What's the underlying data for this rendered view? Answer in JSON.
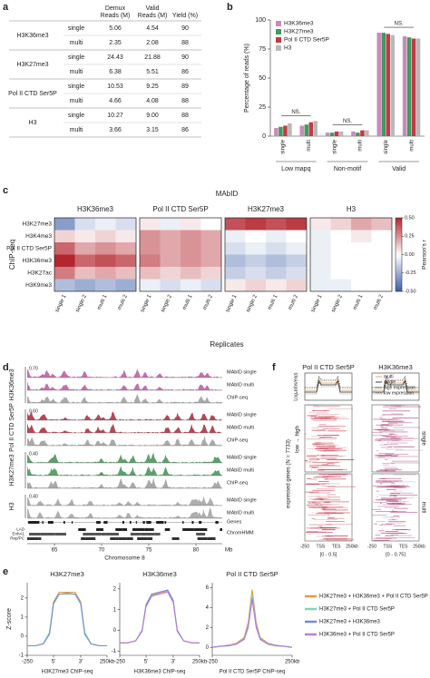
{
  "panel_labels": [
    "a",
    "b",
    "c",
    "d",
    "e",
    "f"
  ],
  "table": {
    "header": [
      [
        "Demux",
        "Reads (M)"
      ],
      [
        "Valid",
        "Reads (M)"
      ],
      [
        "Yield (%)"
      ]
    ],
    "groups": [
      {
        "name": "H3K36me3",
        "rows": [
          [
            "single",
            "5.06",
            "4.54",
            "90"
          ],
          [
            "multi",
            "2.35",
            "2.08",
            "88"
          ]
        ]
      },
      {
        "name": "H3K27me3",
        "rows": [
          [
            "single",
            "24.43",
            "21.88",
            "90"
          ],
          [
            "multi",
            "6.38",
            "5.51",
            "86"
          ]
        ]
      },
      {
        "name": "Pol II CTD Ser5P",
        "rows": [
          [
            "single",
            "10.53",
            "9.25",
            "89"
          ],
          [
            "multi",
            "4.66",
            "4.08",
            "88"
          ]
        ]
      },
      {
        "name": "H3",
        "rows": [
          [
            "single",
            "10.27",
            "9.00",
            "88"
          ],
          [
            "multi",
            "3.66",
            "3.15",
            "86"
          ]
        ]
      }
    ]
  },
  "chart_data": [
    {
      "type": "bar",
      "ylabel": "Percentage of reads (%)",
      "categories": [
        "single",
        "multi",
        "single",
        "multi",
        "single",
        "multi"
      ],
      "groups": [
        "Low mapq",
        "Non-motif",
        "Valid"
      ],
      "annotations": [
        "NS.",
        "NS.",
        "NS."
      ],
      "ylim": [
        0,
        100
      ],
      "yticks": [
        0,
        25,
        50,
        75,
        100
      ],
      "series": [
        {
          "name": "H3K36me3",
          "color": "#c98bb9",
          "values": [
            7,
            9,
            3,
            4,
            89,
            86
          ]
        },
        {
          "name": "H3K27me3",
          "color": "#3f9a62",
          "values": [
            8,
            10,
            3,
            3,
            89,
            85
          ]
        },
        {
          "name": "Pol II CTD Ser5P",
          "color": "#c23a45",
          "values": [
            9,
            12,
            4,
            5,
            88,
            84
          ]
        },
        {
          "name": "H3",
          "color": "#b9b9b9",
          "values": [
            11,
            13,
            4,
            5,
            87,
            84
          ]
        }
      ]
    },
    {
      "type": "heatmap",
      "title": "MAbID",
      "ylabel": "ChIP-seq",
      "xlabel": "Replicates",
      "colorbar_label": "Pearson's r",
      "rows": [
        "H3K27me3",
        "H3K4me3",
        "Pol II CTD Ser5P",
        "H3K36me3",
        "H3K27ac",
        "H3K9me3"
      ],
      "columns": [
        "single 1",
        "single 2",
        "multi 1",
        "multi 2"
      ],
      "clim": [
        -0.5,
        0.5
      ],
      "colors": [
        "#3b5ca6",
        "#ffffff",
        "#b3262e"
      ],
      "colorbar_ticks": [
        {
          "value": 0.5,
          "label": "0.50"
        },
        {
          "value": 0.25,
          "label": "0.25"
        },
        {
          "value": 0,
          "label": "0.00"
        },
        {
          "value": -0.25,
          "label": "-0.25"
        },
        {
          "value": -0.5,
          "label": "-0.50"
        }
      ],
      "panels": [
        {
          "name": "H3K36me3",
          "values": [
            [
              -0.3,
              -0.1,
              -0.05,
              -0.1
            ],
            [
              0.1,
              0.05,
              0.1,
              0.05
            ],
            [
              0.35,
              0.2,
              0.25,
              0.2
            ],
            [
              0.5,
              0.35,
              0.4,
              0.35
            ],
            [
              0.3,
              0.15,
              0.2,
              0.15
            ],
            [
              -0.2,
              -0.25,
              -0.2,
              -0.25
            ]
          ]
        },
        {
          "name": "Pol II CTD Ser5P",
          "values": [
            [
              0.05,
              -0.05,
              0.05,
              0
            ],
            [
              0.25,
              0.2,
              0.25,
              0.2
            ],
            [
              0.25,
              0.2,
              0.25,
              0.2
            ],
            [
              0.3,
              0.2,
              0.25,
              0.2
            ],
            [
              0.15,
              0.1,
              0.15,
              0.1
            ],
            [
              -0.05,
              -0.1,
              -0.05,
              -0.1
            ]
          ]
        },
        {
          "name": "H3K27me3",
          "values": [
            [
              0.4,
              0.45,
              0.4,
              0.45
            ],
            [
              -0.05,
              0,
              -0.05,
              0
            ],
            [
              -0.1,
              -0.05,
              -0.1,
              -0.05
            ],
            [
              -0.2,
              -0.15,
              -0.2,
              -0.15
            ],
            [
              -0.15,
              -0.1,
              -0.15,
              -0.1
            ],
            [
              0.05,
              0.1,
              0.05,
              0.1
            ]
          ]
        },
        {
          "name": "H3",
          "values": [
            [
              0.05,
              0.1,
              0.2,
              0.15
            ],
            [
              -0.05,
              0,
              0.05,
              0
            ],
            [
              -0.05,
              0,
              0,
              0
            ],
            [
              -0.05,
              0,
              0,
              0
            ],
            [
              -0.05,
              0,
              0,
              0
            ],
            [
              -0.05,
              -0.05,
              0,
              0
            ]
          ]
        }
      ]
    },
    {
      "type": "line",
      "title": "H3K27me3",
      "xlabel": "H3K27me3 ChIP-seq",
      "ylabel": "Z-score",
      "x": [
        0,
        10,
        20,
        28,
        33,
        40,
        50,
        60,
        67,
        72,
        80,
        90,
        100
      ],
      "xlim": [
        0,
        100
      ],
      "xticks": [
        {
          "value": 0,
          "label": "-250"
        },
        {
          "value": 33,
          "label": "5'"
        },
        {
          "value": 67,
          "label": "3'"
        },
        {
          "value": 100,
          "label": "250kb"
        }
      ],
      "ylim": [
        -1,
        2.8
      ],
      "yticks": [
        -1,
        0,
        1,
        2
      ],
      "series": [
        {
          "name": "H3K27me3 + H3K36me3 + Pol II CTD Ser5P",
          "color": "#e39a45",
          "values": [
            -0.5,
            -0.5,
            -0.4,
            0.2,
            1.8,
            2.3,
            2.3,
            2.3,
            1.8,
            0.2,
            -0.4,
            -0.5,
            -0.5
          ]
        },
        {
          "name": "H3K27me3 + Pol II CTD Ser5P",
          "color": "#86d1bd",
          "values": [
            -0.5,
            -0.5,
            -0.4,
            0.2,
            1.7,
            2.2,
            2.2,
            2.2,
            1.7,
            0.2,
            -0.4,
            -0.5,
            -0.5
          ]
        },
        {
          "name": "H3K27me3 + H3K36me3",
          "color": "#6c8fd8",
          "values": [
            -0.5,
            -0.5,
            -0.4,
            0.1,
            1.7,
            2.2,
            2.25,
            2.2,
            1.7,
            0.1,
            -0.4,
            -0.5,
            -0.5
          ]
        }
      ]
    },
    {
      "type": "line",
      "title": "H3K36me3",
      "xlabel": "H3K36me3 ChIP-seq",
      "x": [
        0,
        10,
        20,
        28,
        33,
        40,
        50,
        60,
        67,
        72,
        80,
        90,
        100
      ],
      "xlim": [
        0,
        100
      ],
      "xticks": [
        {
          "value": 0,
          "label": "-250"
        },
        {
          "value": 33,
          "label": "5'"
        },
        {
          "value": 67,
          "label": "3'"
        },
        {
          "value": 100,
          "label": "250kb"
        }
      ],
      "ylim": [
        -1.2,
        2.3
      ],
      "yticks": [
        -1,
        0,
        1,
        2
      ],
      "series": [
        {
          "name": "H3K27me3 + H3K36me3 + Pol II CTD Ser5P",
          "color": "#e39a45",
          "values": [
            -0.6,
            -0.6,
            -0.5,
            0,
            1.2,
            1.7,
            1.8,
            1.9,
            1.4,
            0,
            -0.5,
            -0.6,
            -0.6
          ]
        },
        {
          "name": "H3K27me3 + H3K36me3",
          "color": "#6c8fd8",
          "values": [
            -0.6,
            -0.6,
            -0.5,
            0,
            1.25,
            1.75,
            1.85,
            1.95,
            1.45,
            0,
            -0.5,
            -0.6,
            -0.6
          ]
        },
        {
          "name": "H3K36me3 + Pol II CTD Ser5P",
          "color": "#b57fe0",
          "values": [
            -0.6,
            -0.6,
            -0.5,
            -0.05,
            1.15,
            1.65,
            1.75,
            1.85,
            1.35,
            -0.05,
            -0.5,
            -0.6,
            -0.6
          ]
        }
      ]
    },
    {
      "type": "line",
      "title": "Pol II CTD Ser5P",
      "xlabel": "Pol II CTD Ser5P ChIP-seq",
      "x": [
        0,
        10,
        20,
        30,
        40,
        45,
        50,
        55,
        60,
        70,
        80,
        90,
        100
      ],
      "xlim": [
        0,
        100
      ],
      "xticks": [
        {
          "value": 0,
          "label": "-250"
        },
        {
          "value": 100,
          "label": "250kb"
        }
      ],
      "ylim": [
        -0.8,
        6.5
      ],
      "yticks": [
        0,
        2,
        4,
        6
      ],
      "series": [
        {
          "name": "H3K27me3 + H3K36me3 + Pol II CTD Ser5P",
          "color": "#e39a45",
          "values": [
            0,
            0.1,
            0.2,
            0.4,
            1,
            2.5,
            5.8,
            2.5,
            1,
            0.4,
            0.2,
            0.1,
            0
          ]
        },
        {
          "name": "H3K27me3 + Pol II CTD Ser5P",
          "color": "#86d1bd",
          "values": [
            0,
            0.1,
            0.2,
            0.3,
            0.9,
            2.2,
            5.2,
            2.2,
            0.9,
            0.3,
            0.2,
            0.1,
            0
          ]
        },
        {
          "name": "H3K27me3 + H3K36me3",
          "color": "#6c8fd8",
          "values": [
            0,
            0.1,
            0.15,
            0.3,
            0.8,
            2,
            4.9,
            2,
            0.8,
            0.3,
            0.15,
            0.1,
            0
          ]
        },
        {
          "name": "H3K36me3 + Pol II CTD Ser5P",
          "color": "#b57fe0",
          "values": [
            0,
            0.1,
            0.2,
            0.3,
            0.85,
            2.1,
            4.8,
            2.1,
            0.85,
            0.3,
            0.2,
            0.1,
            0
          ]
        }
      ]
    }
  ],
  "genome_browser": {
    "groups": [
      {
        "name": "H3K36me3",
        "scale": "0.70",
        "color": "#b9579c",
        "tracks": [
          "MAbID single",
          "MAbID multi",
          "ChIP-seq"
        ]
      },
      {
        "name": "Pol II CTD Ser5P",
        "scale": "0.60",
        "color": "#a3293b",
        "tracks": [
          "MAbID single",
          "MAbID multi",
          "ChIP-seq"
        ]
      },
      {
        "name": "H3K27me3",
        "scale": "0.40",
        "color": "#3f8f55",
        "tracks": [
          "MAbID single",
          "MAbID multi",
          "ChIP-seq"
        ]
      },
      {
        "name": "H3",
        "scale": "0.40",
        "color": "#a0a0a0",
        "tracks": [
          "MAbID single",
          "MAbID multi"
        ]
      }
    ],
    "annotations": [
      "Genes",
      "ChromHMM"
    ],
    "chromhmm_states": [
      "LAD",
      "EnhA1",
      "Rep/PC"
    ],
    "xlabel": "Chromosome 8",
    "xticks": [
      "65",
      "70",
      "75",
      "80"
    ],
    "unit": "Mb"
  },
  "expression_heatmap": {
    "panels": [
      {
        "title": "Pol II CTD Ser5P",
        "range": "[0 - 0.5]"
      },
      {
        "title": "H3K36me3",
        "range": "[0 - 0.75]"
      }
    ],
    "profile_ylabel": "Log₂(obs/exp)",
    "legend": [
      "multi",
      "single",
      "high expression",
      "low expression"
    ],
    "row_label": "expressed genes (N = 7733)",
    "order_label": "low → high",
    "sections": [
      "single",
      "multi"
    ],
    "xticks": [
      "-250",
      "TSS",
      "TES",
      "250kb"
    ]
  }
}
